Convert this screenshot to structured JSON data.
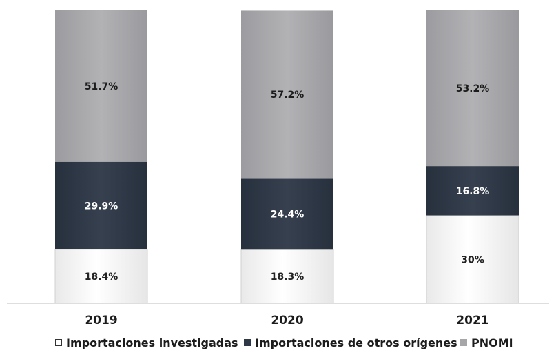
{
  "chart_data": {
    "type": "bar",
    "stacked": true,
    "categories": [
      "2019",
      "2020",
      "2021"
    ],
    "series": [
      {
        "name": "Importaciones investigadas",
        "values": [
          18.4,
          18.3,
          30
        ],
        "labels": [
          "18.4%",
          "18.3%",
          "30%"
        ],
        "color": "#f8f8f8"
      },
      {
        "name": "Importaciones de otros orígenes",
        "values": [
          29.9,
          24.4,
          16.8
        ],
        "labels": [
          "29.9%",
          "24.4%",
          "16.8%"
        ],
        "color": "#2f3846"
      },
      {
        "name": "PNOMI",
        "values": [
          51.7,
          57.2,
          53.2
        ],
        "labels": [
          "51.7%",
          "57.2%",
          "53.2%"
        ],
        "color": "#a6a6a9"
      }
    ],
    "ylim": [
      0,
      100
    ],
    "legend_position": "bottom",
    "grid": false
  },
  "colors": {
    "investigadas_fill": "#f8f8f8",
    "otros_fill": "#2f3846",
    "pnomi_fill": "#a6a6a9",
    "axis": "#bdbdbd"
  }
}
